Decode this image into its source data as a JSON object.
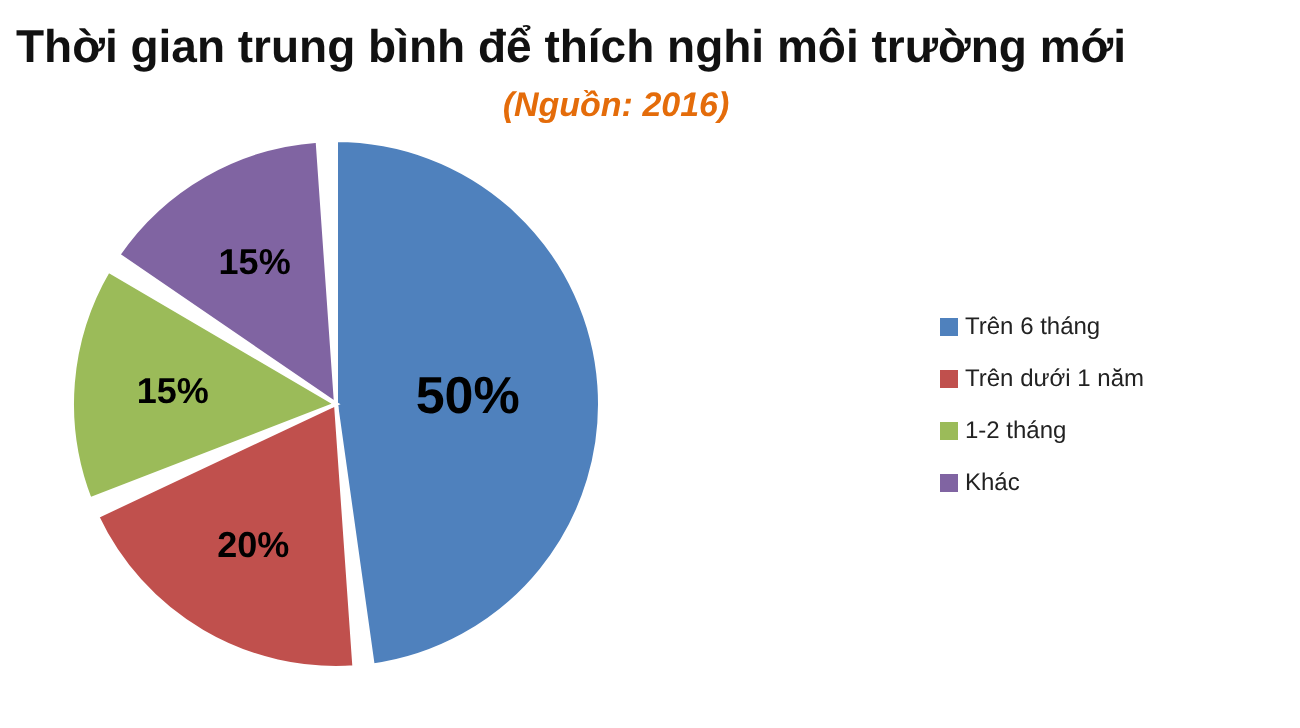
{
  "chart_data": {
    "type": "pie",
    "title": "Thời gian trung bình để thích nghi môi trường mới",
    "subtitle": "(Nguồn: 2016)",
    "categories": [
      "Trên 6 tháng",
      "Trên  dưới 1 năm",
      "1-2 tháng",
      "Khác"
    ],
    "values": [
      50,
      20,
      15,
      15
    ],
    "value_labels": [
      "50%",
      "20%",
      "15%",
      "15%"
    ],
    "colors": [
      "#4f81bd",
      "#c0504d",
      "#9bbb59",
      "#8064a2"
    ],
    "legend": "right"
  }
}
